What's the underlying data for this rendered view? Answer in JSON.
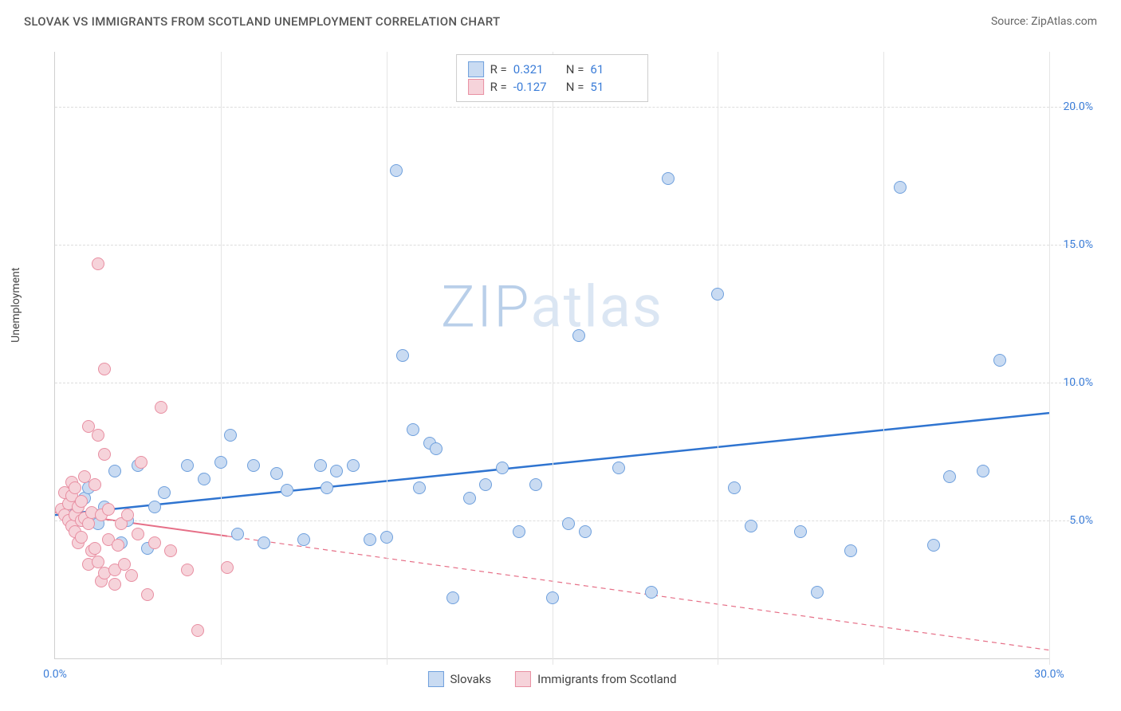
{
  "header": {
    "title": "SLOVAK VS IMMIGRANTS FROM SCOTLAND UNEMPLOYMENT CORRELATION CHART",
    "source": "Source: ZipAtlas.com"
  },
  "ylabel": "Unemployment",
  "watermark_text": "ZIPatlas",
  "watermark_color_strong": "#b9cfe9",
  "watermark_color_light": "#dbe6f3",
  "xlim": [
    0,
    30
  ],
  "ylim": [
    0,
    22
  ],
  "y_ticks": [
    {
      "v": 5,
      "label": "5.0%"
    },
    {
      "v": 10,
      "label": "10.0%"
    },
    {
      "v": 15,
      "label": "15.0%"
    },
    {
      "v": 20,
      "label": "20.0%"
    }
  ],
  "x_ticks": [
    0,
    5,
    10,
    15,
    20,
    25,
    30
  ],
  "x_tick_labels": {
    "0": "0.0%",
    "30": "30.0%"
  },
  "axis_label_color": "#3b7dd8",
  "grid_color": "#dddddd",
  "point_radius": 8,
  "series": [
    {
      "name": "Slovaks",
      "fill": "#c9dbf2",
      "stroke": "#6fa0dd",
      "r_value": "0.321",
      "n_value": "61",
      "trend": {
        "y_at_x0": 5.2,
        "y_at_x30": 8.9,
        "stroke": "#2f74d0",
        "width": 2.5,
        "dash": "none",
        "solid_to_x": 30
      },
      "points": [
        [
          0.3,
          5.4
        ],
        [
          0.5,
          5.6
        ],
        [
          0.8,
          5.0
        ],
        [
          0.9,
          5.8
        ],
        [
          1.0,
          6.2
        ],
        [
          1.2,
          5.2
        ],
        [
          1.3,
          4.9
        ],
        [
          1.5,
          5.5
        ],
        [
          1.8,
          6.8
        ],
        [
          2.0,
          4.2
        ],
        [
          2.2,
          5.0
        ],
        [
          2.5,
          7.0
        ],
        [
          2.8,
          4.0
        ],
        [
          3.0,
          5.5
        ],
        [
          3.3,
          6.0
        ],
        [
          4.0,
          7.0
        ],
        [
          4.5,
          6.5
        ],
        [
          5.0,
          7.1
        ],
        [
          5.3,
          8.1
        ],
        [
          5.5,
          4.5
        ],
        [
          6.0,
          7.0
        ],
        [
          6.3,
          4.2
        ],
        [
          6.7,
          6.7
        ],
        [
          7.0,
          6.1
        ],
        [
          7.5,
          4.3
        ],
        [
          8.0,
          7.0
        ],
        [
          8.2,
          6.2
        ],
        [
          8.5,
          6.8
        ],
        [
          9.0,
          7.0
        ],
        [
          9.5,
          4.3
        ],
        [
          10.0,
          4.4
        ],
        [
          10.3,
          17.7
        ],
        [
          10.5,
          11.0
        ],
        [
          10.8,
          8.3
        ],
        [
          11.0,
          6.2
        ],
        [
          11.3,
          7.8
        ],
        [
          11.5,
          7.6
        ],
        [
          12.0,
          2.2
        ],
        [
          12.5,
          5.8
        ],
        [
          13.0,
          6.3
        ],
        [
          13.5,
          6.9
        ],
        [
          14.0,
          4.6
        ],
        [
          14.5,
          6.3
        ],
        [
          15.0,
          2.2
        ],
        [
          15.5,
          4.9
        ],
        [
          15.8,
          11.7
        ],
        [
          16.0,
          4.6
        ],
        [
          17.0,
          6.9
        ],
        [
          18.0,
          2.4
        ],
        [
          18.5,
          17.4
        ],
        [
          20.0,
          13.2
        ],
        [
          20.5,
          6.2
        ],
        [
          21.0,
          4.8
        ],
        [
          22.5,
          4.6
        ],
        [
          23.0,
          2.4
        ],
        [
          24.0,
          3.9
        ],
        [
          25.5,
          17.1
        ],
        [
          26.5,
          4.1
        ],
        [
          27.0,
          6.6
        ],
        [
          28.0,
          6.8
        ],
        [
          28.5,
          10.8
        ]
      ]
    },
    {
      "name": "Immigrants from Scotland",
      "fill": "#f6d3da",
      "stroke": "#e88fa2",
      "r_value": "-0.127",
      "n_value": "51",
      "trend": {
        "y_at_x0": 5.3,
        "y_at_x30": 0.3,
        "stroke": "#e66f87",
        "width": 2,
        "dash": "6,5",
        "solid_to_x": 5.2
      },
      "points": [
        [
          0.2,
          5.4
        ],
        [
          0.3,
          5.2
        ],
        [
          0.3,
          6.0
        ],
        [
          0.4,
          5.0
        ],
        [
          0.4,
          5.6
        ],
        [
          0.5,
          4.8
        ],
        [
          0.5,
          5.9
        ],
        [
          0.5,
          6.4
        ],
        [
          0.6,
          4.6
        ],
        [
          0.6,
          5.2
        ],
        [
          0.6,
          6.2
        ],
        [
          0.7,
          5.5
        ],
        [
          0.7,
          4.2
        ],
        [
          0.8,
          5.0
        ],
        [
          0.8,
          5.7
        ],
        [
          0.8,
          4.4
        ],
        [
          0.9,
          6.6
        ],
        [
          0.9,
          5.1
        ],
        [
          1.0,
          3.4
        ],
        [
          1.0,
          4.9
        ],
        [
          1.0,
          8.4
        ],
        [
          1.1,
          5.3
        ],
        [
          1.1,
          3.9
        ],
        [
          1.2,
          6.3
        ],
        [
          1.2,
          4.0
        ],
        [
          1.3,
          14.3
        ],
        [
          1.3,
          3.5
        ],
        [
          1.3,
          8.1
        ],
        [
          1.4,
          5.2
        ],
        [
          1.4,
          2.8
        ],
        [
          1.5,
          3.1
        ],
        [
          1.5,
          7.4
        ],
        [
          1.5,
          10.5
        ],
        [
          1.6,
          4.3
        ],
        [
          1.6,
          5.4
        ],
        [
          1.8,
          3.2
        ],
        [
          1.8,
          2.7
        ],
        [
          1.9,
          4.1
        ],
        [
          2.0,
          4.9
        ],
        [
          2.1,
          3.4
        ],
        [
          2.2,
          5.2
        ],
        [
          2.3,
          3.0
        ],
        [
          2.5,
          4.5
        ],
        [
          2.6,
          7.1
        ],
        [
          2.8,
          2.3
        ],
        [
          3.0,
          4.2
        ],
        [
          3.2,
          9.1
        ],
        [
          3.5,
          3.9
        ],
        [
          4.0,
          3.2
        ],
        [
          4.3,
          1.0
        ],
        [
          5.2,
          3.3
        ]
      ]
    }
  ],
  "legend_bottom": [
    {
      "label": "Slovaks",
      "fill": "#c9dbf2",
      "stroke": "#6fa0dd"
    },
    {
      "label": "Immigrants from Scotland",
      "fill": "#f6d3da",
      "stroke": "#e88fa2"
    }
  ],
  "legend_top_labels": {
    "r": "R  =",
    "n": "N  ="
  }
}
